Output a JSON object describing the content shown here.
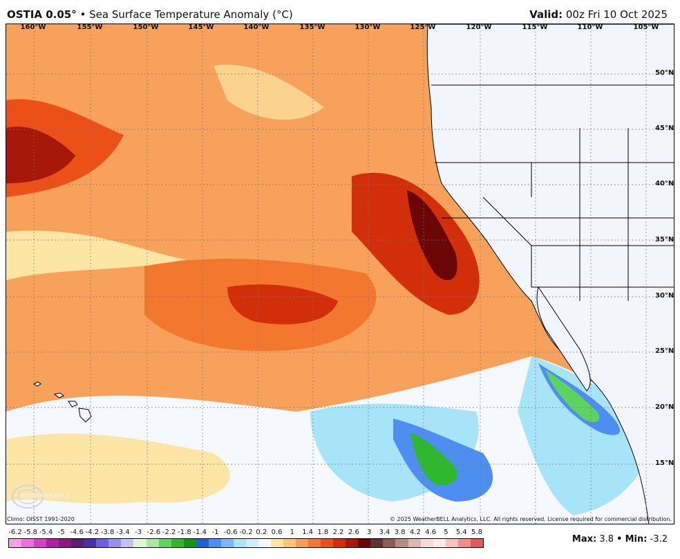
{
  "header": {
    "product": "OSTIA 0.05",
    "degree_mark": "°",
    "separator": "•",
    "description": "Sea Surface Temperature Anomaly (°C)",
    "valid_label": "Valid:",
    "valid_time": "00z Fri 10 Oct 2025"
  },
  "map": {
    "lon_labels": [
      "160°W",
      "155°W",
      "150°W",
      "145°W",
      "140°W",
      "135°W",
      "130°W",
      "125°W",
      "120°W",
      "115°W",
      "110°W",
      "105°W"
    ],
    "lat_labels": [
      "50°N",
      "45°N",
      "40°N",
      "35°N",
      "30°N",
      "25°N",
      "20°N",
      "15°N"
    ],
    "logo_text": "WEATHERBELL"
  },
  "footer": {
    "climo": "Climo: OISST 1991-2020",
    "copyright": "© 2025 WeatherBELL Analytics, LLC. All rights reserved. License required for commercial distribution.",
    "max_label": "Max:",
    "max_value": "3.8",
    "min_label": "Min:",
    "min_value": "-3.2",
    "stat_separator": "•"
  },
  "colorbar": {
    "labels": [
      "-6.2",
      "-5.8",
      "-5.4",
      "-5",
      "-4.6",
      "-4.2",
      "-3.8",
      "-3.4",
      "-3",
      "-2.6",
      "-2.2",
      "-1.8",
      "-1.4",
      "-1",
      "-0.6",
      "-0.2",
      "0.2",
      "0.6",
      "1",
      "1.4",
      "1.8",
      "2.2",
      "2.6",
      "3",
      "3.4",
      "3.8",
      "4.2",
      "4.6",
      "5",
      "5.4",
      "5.8"
    ],
    "colors": [
      "#f7a0e6",
      "#ee6fd9",
      "#d63fc4",
      "#b21fa4",
      "#8a1784",
      "#5e1a6e",
      "#4a2fa8",
      "#6d5ee0",
      "#9b8ef0",
      "#c6bff7",
      "#dff7d2",
      "#a6ea9a",
      "#5fd35f",
      "#2eb82e",
      "#129612",
      "#1f62d6",
      "#4d8ef0",
      "#7fb5f7",
      "#a8e4f7",
      "#cdeff9",
      "#f5f8ff",
      "#fde5a6",
      "#fbc37c",
      "#f89d56",
      "#f4772f",
      "#ec5016",
      "#d22e0a",
      "#a6180a",
      "#6b0606",
      "#5e3530",
      "#8a5e54",
      "#b48c80",
      "#d9b9ad",
      "#f3dad2",
      "#fbeae8",
      "#f7c2c2",
      "#f18c8c",
      "#e45a5a"
    ]
  }
}
